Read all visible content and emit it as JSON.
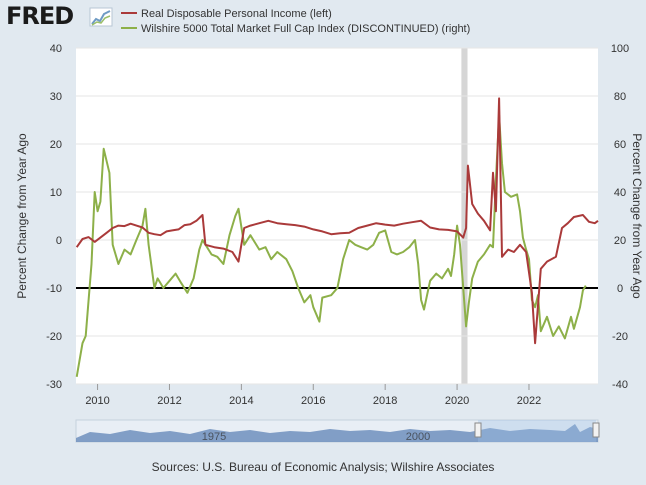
{
  "logo": {
    "text": "FRED"
  },
  "colors": {
    "left_series": "#aa3a3a",
    "right_series": "#8db049",
    "recession": "#d6d6d6",
    "zero_line": "#000000",
    "plot_bg": "#ffffff",
    "navigator": "#4a6fa5"
  },
  "chart_data": {
    "type": "line",
    "title": "",
    "xlabel": "",
    "ylabel": "Percent Change from Year Ago",
    "ylabel_right": "Percent Change from Year Ago",
    "ylim": [
      -30,
      40
    ],
    "ylim_right": [
      -40,
      100
    ],
    "yticks": [
      -30,
      -20,
      -10,
      0,
      10,
      20,
      30,
      40
    ],
    "yticks_right": [
      -40,
      -20,
      0,
      20,
      40,
      60,
      80,
      100
    ],
    "xlim": [
      2009.4,
      2023.92
    ],
    "xticks": [
      2010,
      2012,
      2014,
      2016,
      2018,
      2020,
      2022
    ],
    "grid": "horizontal",
    "legend_placement": "top",
    "recession": [
      2020.12,
      2020.29
    ],
    "zero_line": 0,
    "series": [
      {
        "name": "Real Disposable Personal Income (left)",
        "axis": "left",
        "points": [
          [
            2009.42,
            -1.5
          ],
          [
            2009.58,
            0.2
          ],
          [
            2009.75,
            0.6
          ],
          [
            2009.92,
            -0.4
          ],
          [
            2010.08,
            0.5
          ],
          [
            2010.25,
            1.5
          ],
          [
            2010.42,
            2.5
          ],
          [
            2010.58,
            3.0
          ],
          [
            2010.75,
            2.9
          ],
          [
            2010.92,
            3.4
          ],
          [
            2011.08,
            3.0
          ],
          [
            2011.25,
            2.6
          ],
          [
            2011.42,
            1.5
          ],
          [
            2011.58,
            1.2
          ],
          [
            2011.75,
            1.0
          ],
          [
            2011.92,
            1.8
          ],
          [
            2012.08,
            2.0
          ],
          [
            2012.25,
            2.2
          ],
          [
            2012.42,
            3.1
          ],
          [
            2012.58,
            3.3
          ],
          [
            2012.75,
            4.0
          ],
          [
            2012.92,
            5.2
          ],
          [
            2013.0,
            -1.0
          ],
          [
            2013.25,
            -1.5
          ],
          [
            2013.5,
            -1.8
          ],
          [
            2013.75,
            -2.5
          ],
          [
            2013.92,
            -4.5
          ],
          [
            2014.08,
            2.5
          ],
          [
            2014.25,
            3.0
          ],
          [
            2014.5,
            3.5
          ],
          [
            2014.75,
            4.0
          ],
          [
            2015.0,
            3.5
          ],
          [
            2015.25,
            3.3
          ],
          [
            2015.5,
            3.1
          ],
          [
            2015.75,
            2.8
          ],
          [
            2016.0,
            2.2
          ],
          [
            2016.25,
            1.8
          ],
          [
            2016.5,
            1.2
          ],
          [
            2016.75,
            1.4
          ],
          [
            2017.0,
            1.5
          ],
          [
            2017.25,
            2.5
          ],
          [
            2017.5,
            3.0
          ],
          [
            2017.75,
            3.5
          ],
          [
            2018.0,
            3.2
          ],
          [
            2018.25,
            3.0
          ],
          [
            2018.5,
            3.4
          ],
          [
            2018.75,
            3.7
          ],
          [
            2019.0,
            4.0
          ],
          [
            2019.25,
            2.6
          ],
          [
            2019.5,
            2.2
          ],
          [
            2019.75,
            2.1
          ],
          [
            2020.0,
            1.8
          ],
          [
            2020.17,
            0.5
          ],
          [
            2020.25,
            2.5
          ],
          [
            2020.3,
            15.5
          ],
          [
            2020.42,
            7.5
          ],
          [
            2020.58,
            5.5
          ],
          [
            2020.75,
            4.0
          ],
          [
            2020.92,
            2.0
          ],
          [
            2021.0,
            14.0
          ],
          [
            2021.08,
            6.0
          ],
          [
            2021.17,
            29.5
          ],
          [
            2021.25,
            -3.5
          ],
          [
            2021.42,
            -2.0
          ],
          [
            2021.58,
            -2.5
          ],
          [
            2021.75,
            -1.0
          ],
          [
            2021.92,
            -2.5
          ],
          [
            2022.08,
            -11.0
          ],
          [
            2022.17,
            -21.5
          ],
          [
            2022.33,
            -6.0
          ],
          [
            2022.5,
            -4.5
          ],
          [
            2022.75,
            -3.5
          ],
          [
            2022.92,
            2.5
          ],
          [
            2023.08,
            3.5
          ],
          [
            2023.25,
            4.8
          ],
          [
            2023.5,
            5.2
          ],
          [
            2023.67,
            3.8
          ],
          [
            2023.83,
            3.5
          ],
          [
            2023.92,
            4.0
          ]
        ]
      },
      {
        "name": "Wilshire 5000 Total Market Full Cap Index (DISCONTINUED) (right)",
        "axis": "right",
        "points": [
          [
            2009.42,
            -37
          ],
          [
            2009.58,
            -23
          ],
          [
            2009.67,
            -20
          ],
          [
            2009.83,
            10
          ],
          [
            2009.92,
            40
          ],
          [
            2010.0,
            32
          ],
          [
            2010.08,
            36
          ],
          [
            2010.17,
            58
          ],
          [
            2010.33,
            48
          ],
          [
            2010.42,
            18
          ],
          [
            2010.58,
            10
          ],
          [
            2010.75,
            16
          ],
          [
            2010.92,
            14
          ],
          [
            2011.08,
            20
          ],
          [
            2011.25,
            26
          ],
          [
            2011.33,
            33
          ],
          [
            2011.42,
            18
          ],
          [
            2011.58,
            0
          ],
          [
            2011.67,
            4
          ],
          [
            2011.83,
            0
          ],
          [
            2012.0,
            3
          ],
          [
            2012.17,
            6
          ],
          [
            2012.33,
            2
          ],
          [
            2012.5,
            -2
          ],
          [
            2012.67,
            4
          ],
          [
            2012.83,
            16
          ],
          [
            2012.92,
            20
          ],
          [
            2013.17,
            14
          ],
          [
            2013.33,
            13
          ],
          [
            2013.5,
            10
          ],
          [
            2013.67,
            22
          ],
          [
            2013.83,
            30
          ],
          [
            2013.92,
            33
          ],
          [
            2014.08,
            18
          ],
          [
            2014.25,
            22
          ],
          [
            2014.5,
            16
          ],
          [
            2014.67,
            17
          ],
          [
            2014.83,
            12
          ],
          [
            2015.0,
            15
          ],
          [
            2015.25,
            12
          ],
          [
            2015.42,
            7
          ],
          [
            2015.58,
            0
          ],
          [
            2015.75,
            -6
          ],
          [
            2015.92,
            -3
          ],
          [
            2016.0,
            -8
          ],
          [
            2016.17,
            -14
          ],
          [
            2016.25,
            -4
          ],
          [
            2016.5,
            -3
          ],
          [
            2016.67,
            0
          ],
          [
            2016.83,
            12
          ],
          [
            2017.0,
            20
          ],
          [
            2017.17,
            18
          ],
          [
            2017.33,
            17
          ],
          [
            2017.5,
            16
          ],
          [
            2017.67,
            18
          ],
          [
            2017.83,
            23
          ],
          [
            2018.0,
            24
          ],
          [
            2018.17,
            15
          ],
          [
            2018.33,
            14
          ],
          [
            2018.5,
            15
          ],
          [
            2018.67,
            17
          ],
          [
            2018.83,
            20
          ],
          [
            2018.92,
            10
          ],
          [
            2019.0,
            -5
          ],
          [
            2019.08,
            -9
          ],
          [
            2019.25,
            3
          ],
          [
            2019.42,
            6
          ],
          [
            2019.58,
            4
          ],
          [
            2019.75,
            8
          ],
          [
            2019.83,
            5
          ],
          [
            2019.92,
            14
          ],
          [
            2020.0,
            26
          ],
          [
            2020.08,
            18
          ],
          [
            2020.25,
            -16
          ],
          [
            2020.33,
            -6
          ],
          [
            2020.42,
            4
          ],
          [
            2020.58,
            11
          ],
          [
            2020.75,
            14
          ],
          [
            2020.92,
            18
          ],
          [
            2021.0,
            17
          ],
          [
            2021.08,
            45
          ],
          [
            2021.17,
            72
          ],
          [
            2021.25,
            52
          ],
          [
            2021.33,
            40
          ],
          [
            2021.5,
            38
          ],
          [
            2021.67,
            39
          ],
          [
            2021.75,
            32
          ],
          [
            2021.83,
            21
          ],
          [
            2021.92,
            16
          ],
          [
            2022.0,
            12
          ],
          [
            2022.08,
            -5
          ],
          [
            2022.17,
            -8
          ],
          [
            2022.25,
            -3
          ],
          [
            2022.33,
            -18
          ],
          [
            2022.5,
            -12
          ],
          [
            2022.67,
            -20
          ],
          [
            2022.83,
            -16
          ],
          [
            2023.0,
            -21
          ],
          [
            2023.17,
            -12
          ],
          [
            2023.25,
            -17
          ],
          [
            2023.42,
            -8
          ],
          [
            2023.5,
            -1
          ],
          [
            2023.58,
            1
          ]
        ]
      }
    ]
  },
  "navigator": {
    "labels": [
      "1975",
      "2000"
    ]
  },
  "source": "Sources: U.S. Bureau of Economic Analysis; Wilshire Associates"
}
